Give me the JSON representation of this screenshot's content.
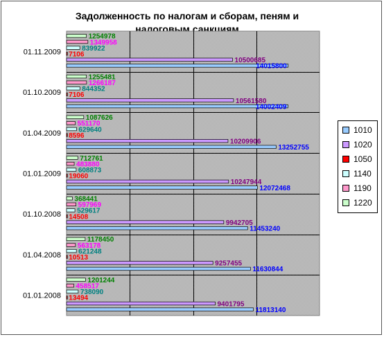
{
  "chart_data": {
    "type": "bar",
    "orientation": "horizontal",
    "title": "Задолженность по налогам и сборам, пеням и налоговым санкциям",
    "title_line1": "Задолженность по налогам и сборам, пеням и",
    "title_line2": "налоговым санкциям",
    "categories": [
      "01.11.2009",
      "01.10.2009",
      "01.04.2009",
      "01.01.2009",
      "01.10.2008",
      "01.04.2008",
      "01.01.2008"
    ],
    "xlim": [
      0,
      16000000
    ],
    "grid": true,
    "legend_position": "right",
    "series": [
      {
        "name": "1220",
        "color": "#CCFFCC",
        "label_color": "#008000",
        "values": [
          1254978,
          1255481,
          1087626,
          712761,
          368441,
          1178450,
          1201244
        ]
      },
      {
        "name": "1190",
        "color": "#FF99CC",
        "label_color": "#FF00FF",
        "values": [
          1349958,
          1266187,
          551170,
          483880,
          597969,
          563178,
          458517
        ]
      },
      {
        "name": "1140",
        "color": "#CCFFFF",
        "label_color": "#008080",
        "values": [
          839922,
          844352,
          629640,
          608873,
          529617,
          621248,
          738090
        ]
      },
      {
        "name": "1050",
        "color": "#FF0000",
        "label_color": "#FF0000",
        "values": [
          7106,
          7106,
          8596,
          19060,
          14508,
          10513,
          13494
        ]
      },
      {
        "name": "1020",
        "color": "#CC99FF",
        "label_color": "#800080",
        "values": [
          10500685,
          10561580,
          10209906,
          10247944,
          9942705,
          9257455,
          9401795
        ]
      },
      {
        "name": "1010",
        "color": "#99CCFF",
        "label_color": "#0000FF",
        "values": [
          14015800,
          14002409,
          13252755,
          12072468,
          11453240,
          11630844,
          11813140
        ]
      }
    ]
  }
}
